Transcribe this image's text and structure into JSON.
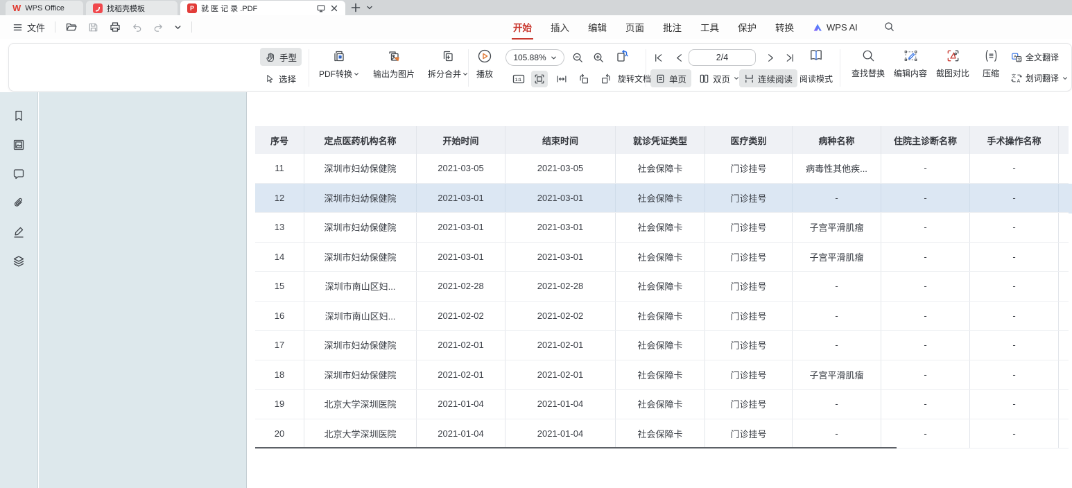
{
  "tabbar": {
    "tabs": [
      {
        "label": "WPS Office"
      },
      {
        "label": "找稻壳模板"
      },
      {
        "label": "就 医 记 录 .PDF"
      }
    ]
  },
  "menubar": {
    "file": "文件",
    "items": [
      "开始",
      "插入",
      "编辑",
      "页面",
      "批注",
      "工具",
      "保护",
      "转换"
    ],
    "active_item": "开始",
    "wps_ai": "WPS AI"
  },
  "toolbar": {
    "hand": "手型",
    "select": "选择",
    "pdf_convert": "PDF转换",
    "export_image": "输出为图片",
    "split_merge": "拆分合并",
    "play": "播放",
    "zoom_value": "105.88%",
    "actual_size": "1:1",
    "rotate_doc": "旋转文档",
    "page_indicator": "2/4",
    "single_page": "单页",
    "double_page": "双页",
    "continuous": "连续阅读",
    "reading_mode": "阅读模式",
    "find_replace": "查找替换",
    "edit_content": "编辑内容",
    "screenshot_compare": "截图对比",
    "compress": "压缩",
    "full_translate": "全文翻译",
    "word_translate": "划词翻译"
  },
  "colors": {
    "accent_red": "#c9372e",
    "selected_row_bg": "#dce7f3",
    "table_header_bg": "#eff1f5",
    "panel_bg": "#dde8ec"
  },
  "table": {
    "headers": [
      "序号",
      "定点医药机构名称",
      "开始时间",
      "结束时间",
      "就诊凭证类型",
      "医疗类别",
      "病种名称",
      "住院主诊断名称",
      "手术操作名称"
    ],
    "selected_row": 1,
    "rows": [
      [
        "11",
        "深圳市妇幼保健院",
        "2021-03-05",
        "2021-03-05",
        "社会保障卡",
        "门诊挂号",
        "病毒性其他疾...",
        "-",
        "-"
      ],
      [
        "12",
        "深圳市妇幼保健院",
        "2021-03-01",
        "2021-03-01",
        "社会保障卡",
        "门诊挂号",
        "-",
        "-",
        "-"
      ],
      [
        "13",
        "深圳市妇幼保健院",
        "2021-03-01",
        "2021-03-01",
        "社会保障卡",
        "门诊挂号",
        "子宫平滑肌瘤",
        "-",
        "-"
      ],
      [
        "14",
        "深圳市妇幼保健院",
        "2021-03-01",
        "2021-03-01",
        "社会保障卡",
        "门诊挂号",
        "子宫平滑肌瘤",
        "-",
        "-"
      ],
      [
        "15",
        "深圳市南山区妇...",
        "2021-02-28",
        "2021-02-28",
        "社会保障卡",
        "门诊挂号",
        "-",
        "-",
        "-"
      ],
      [
        "16",
        "深圳市南山区妇...",
        "2021-02-02",
        "2021-02-02",
        "社会保障卡",
        "门诊挂号",
        "-",
        "-",
        "-"
      ],
      [
        "17",
        "深圳市妇幼保健院",
        "2021-02-01",
        "2021-02-01",
        "社会保障卡",
        "门诊挂号",
        "-",
        "-",
        "-"
      ],
      [
        "18",
        "深圳市妇幼保健院",
        "2021-02-01",
        "2021-02-01",
        "社会保障卡",
        "门诊挂号",
        "子宫平滑肌瘤",
        "-",
        "-"
      ],
      [
        "19",
        "北京大学深圳医院",
        "2021-01-04",
        "2021-01-04",
        "社会保障卡",
        "门诊挂号",
        "-",
        "-",
        "-"
      ],
      [
        "20",
        "北京大学深圳医院",
        "2021-01-04",
        "2021-01-04",
        "社会保障卡",
        "门诊挂号",
        "-",
        "-",
        "-"
      ]
    ]
  }
}
